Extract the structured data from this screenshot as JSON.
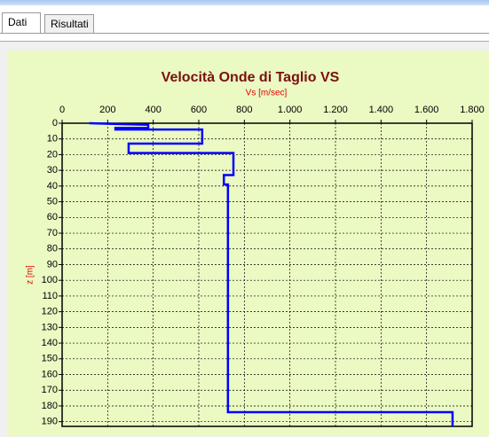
{
  "tabs": [
    "Dati",
    "Risultati"
  ],
  "chart_data": {
    "type": "line",
    "title": "Velocità Onde di Taglio VS",
    "x_label": "Vs [m/sec]",
    "y_label": "z [m]",
    "x": [
      120,
      378,
      378,
      234,
      234,
      615,
      615,
      292,
      292,
      752,
      752,
      710,
      710,
      728,
      728,
      1714,
      1714
    ],
    "values": [
      0,
      1,
      3,
      3,
      4,
      4,
      13,
      13,
      19,
      19,
      33,
      33,
      39,
      39,
      184,
      184,
      193
    ],
    "color": "#0000ff",
    "xlim": [
      0,
      1800
    ],
    "xticks": [
      0,
      200,
      400,
      600,
      800,
      {
        "value": 1000,
        "label": "1.000"
      },
      {
        "value": 1200,
        "label": "1.200"
      },
      {
        "value": 1400,
        "label": "1.400"
      },
      {
        "value": 1600,
        "label": "1.600"
      },
      {
        "value": 1800,
        "label": "1.800"
      }
    ],
    "ylim": [
      0,
      193
    ],
    "y_inverted": true,
    "yticks": [
      0,
      10,
      20,
      30,
      40,
      50,
      60,
      70,
      80,
      90,
      100,
      110,
      120,
      130,
      140,
      150,
      160,
      170,
      180,
      190
    ],
    "grid": true
  }
}
